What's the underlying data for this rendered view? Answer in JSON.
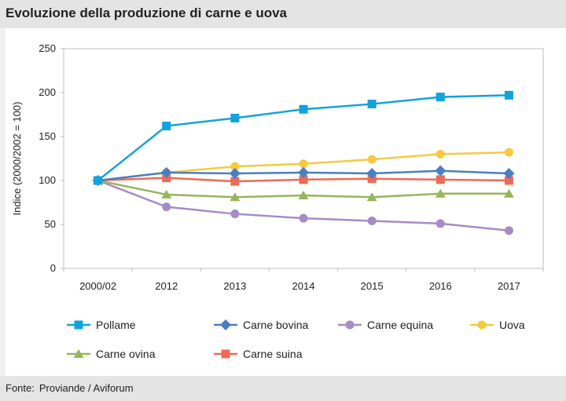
{
  "header": {
    "title": "Evoluzione della produzione di carne e uova"
  },
  "footer": {
    "label": "Fonte:",
    "source": "Proviande / Aviforum"
  },
  "chart_data": {
    "type": "line",
    "ylabel": "Indice (2000/2002 = 100)",
    "ylim": [
      0,
      250
    ],
    "yticks": [
      0,
      50,
      100,
      150,
      200,
      250
    ],
    "categories": [
      "2000/02",
      "2012",
      "2013",
      "2014",
      "2015",
      "2016",
      "2017"
    ],
    "grid": false,
    "legend": "bottom",
    "series": [
      {
        "name": "Pollame",
        "color": "#12a2dc",
        "marker": "square",
        "values": [
          100,
          162,
          171,
          181,
          187,
          195,
          197
        ]
      },
      {
        "name": "Carne bovina",
        "color": "#4a7fc1",
        "marker": "diamond",
        "values": [
          100,
          109,
          108,
          109,
          108,
          111,
          108
        ]
      },
      {
        "name": "Carne equina",
        "color": "#a68bc7",
        "marker": "circle",
        "values": [
          100,
          70,
          62,
          57,
          54,
          51,
          43
        ]
      },
      {
        "name": "Uova",
        "color": "#f6c93f",
        "marker": "circle",
        "values": [
          100,
          109,
          116,
          119,
          124,
          130,
          132
        ]
      },
      {
        "name": "Carne ovina",
        "color": "#97b55a",
        "marker": "triangle",
        "values": [
          100,
          84,
          81,
          83,
          81,
          85,
          85
        ]
      },
      {
        "name": "Carne suina",
        "color": "#ec6a57",
        "marker": "square",
        "values": [
          100,
          103,
          99,
          101,
          102,
          101,
          100
        ]
      }
    ]
  }
}
